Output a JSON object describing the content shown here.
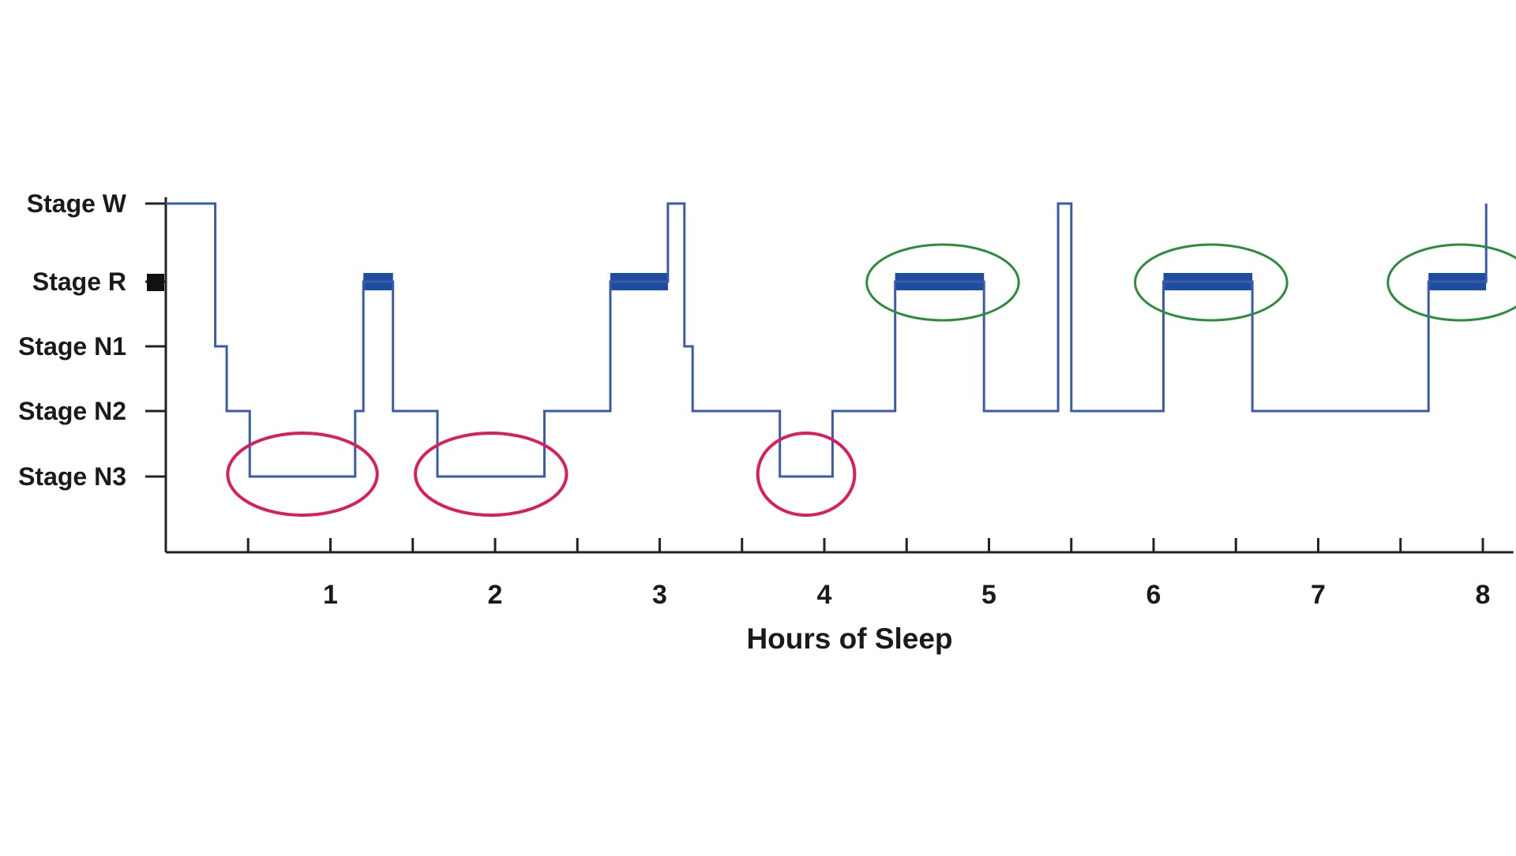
{
  "chart_data": {
    "type": "line",
    "title": "",
    "xlabel": "Hours of Sleep",
    "ylabel": "",
    "xlim": [
      0,
      8.2
    ],
    "x_ticks": [
      "1",
      "2",
      "3",
      "4",
      "5",
      "6",
      "7",
      "8"
    ],
    "y_levels": [
      "Stage W",
      "Stage R",
      "Stage N1",
      "Stage N2",
      "Stage N3"
    ],
    "line_color": "#3a5ba8",
    "rem_color": "#1e4c9e",
    "stage_values": {
      "Stage W": 4,
      "Stage R": 3,
      "Stage N1": 2,
      "Stage N2": 1,
      "Stage N3": 0
    },
    "hypnogram": [
      [
        0.0,
        4
      ],
      [
        0.3,
        4
      ],
      [
        0.3,
        2
      ],
      [
        0.37,
        2
      ],
      [
        0.37,
        1
      ],
      [
        0.51,
        1
      ],
      [
        0.51,
        0
      ],
      [
        1.15,
        0
      ],
      [
        1.15,
        1
      ],
      [
        1.2,
        1
      ],
      [
        1.2,
        3
      ],
      [
        1.38,
        3
      ],
      [
        1.38,
        1
      ],
      [
        1.65,
        1
      ],
      [
        1.65,
        0
      ],
      [
        2.3,
        0
      ],
      [
        2.3,
        1
      ],
      [
        2.7,
        1
      ],
      [
        2.7,
        3
      ],
      [
        3.05,
        3
      ],
      [
        3.05,
        4
      ],
      [
        3.15,
        4
      ],
      [
        3.15,
        2
      ],
      [
        3.2,
        2
      ],
      [
        3.2,
        1
      ],
      [
        3.73,
        1
      ],
      [
        3.73,
        0
      ],
      [
        4.05,
        0
      ],
      [
        4.05,
        1
      ],
      [
        4.43,
        1
      ],
      [
        4.43,
        3
      ],
      [
        4.97,
        3
      ],
      [
        4.97,
        1
      ],
      [
        5.42,
        1
      ],
      [
        5.42,
        4
      ],
      [
        5.5,
        4
      ],
      [
        5.5,
        1
      ],
      [
        6.06,
        1
      ],
      [
        6.06,
        3
      ],
      [
        6.6,
        3
      ],
      [
        6.6,
        1
      ],
      [
        7.67,
        1
      ],
      [
        7.67,
        3
      ],
      [
        8.02,
        3
      ],
      [
        8.02,
        4
      ]
    ],
    "rem_periods": [
      [
        1.2,
        1.38
      ],
      [
        2.7,
        3.05
      ],
      [
        4.43,
        4.97
      ],
      [
        6.06,
        6.6
      ],
      [
        7.67,
        8.02
      ]
    ],
    "annotations": {
      "deep_sleep_circles": {
        "color": "#d81e5b",
        "ranges": [
          [
            0.51,
            1.15
          ],
          [
            1.65,
            2.3
          ],
          [
            3.73,
            4.05
          ]
        ]
      },
      "rem_circles": {
        "color": "#2e8b3e",
        "ranges": [
          [
            4.43,
            4.97
          ],
          [
            6.06,
            6.6
          ],
          [
            7.67,
            8.02
          ]
        ]
      }
    }
  }
}
